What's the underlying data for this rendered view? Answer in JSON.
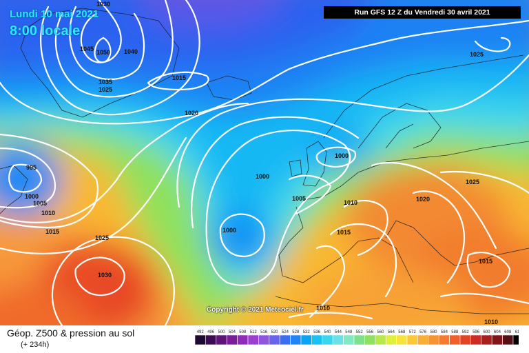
{
  "header": {
    "date_line": "Lundi 10 mai 2021",
    "time_line": "8:00 locale",
    "run_info": "Run GFS 12 Z du Vendredi 30 avril 2021"
  },
  "footer": {
    "caption": "Géop. Z500 & pression au sol",
    "lead_time": "(+ 234h)",
    "copyright": "Copyright © 2021 Meteociel.fr"
  },
  "colorbar": {
    "labels": [
      "492",
      "496",
      "500",
      "504",
      "508",
      "512",
      "516",
      "520",
      "524",
      "528",
      "532",
      "536",
      "540",
      "544",
      "548",
      "552",
      "556",
      "560",
      "564",
      "568",
      "572",
      "576",
      "580",
      "584",
      "588",
      "592",
      "596",
      "600",
      "604",
      "608",
      "612"
    ],
    "colors": [
      "#1e0a30",
      "#3c0c52",
      "#5c1475",
      "#7a1d99",
      "#8f2bb8",
      "#9a3fd0",
      "#8c56e0",
      "#6a63ef",
      "#3b6ff2",
      "#1e86f5",
      "#0aa4f5",
      "#19c2f3",
      "#3ad6ee",
      "#69e2e6",
      "#80e8c2",
      "#7ee08a",
      "#8ee060",
      "#b8e84c",
      "#e2ee3c",
      "#f8e23c",
      "#fcc83a",
      "#f9ae36",
      "#f79432",
      "#f77a2e",
      "#f2602a",
      "#e44426",
      "#cc2c22",
      "#a8201e",
      "#7e161a",
      "#541012",
      "#000000"
    ]
  },
  "map": {
    "pressure_labels": [
      "1030",
      "1045",
      "1050",
      "1040",
      "1035",
      "1025",
      "1015",
      "1020",
      "995",
      "1000",
      "1005",
      "1010",
      "1015",
      "1025",
      "1030",
      "1000",
      "1000",
      "1005",
      "1010",
      "1000",
      "1020",
      "1025",
      "1015",
      "1015",
      "1010",
      "1010",
      "1025"
    ]
  }
}
